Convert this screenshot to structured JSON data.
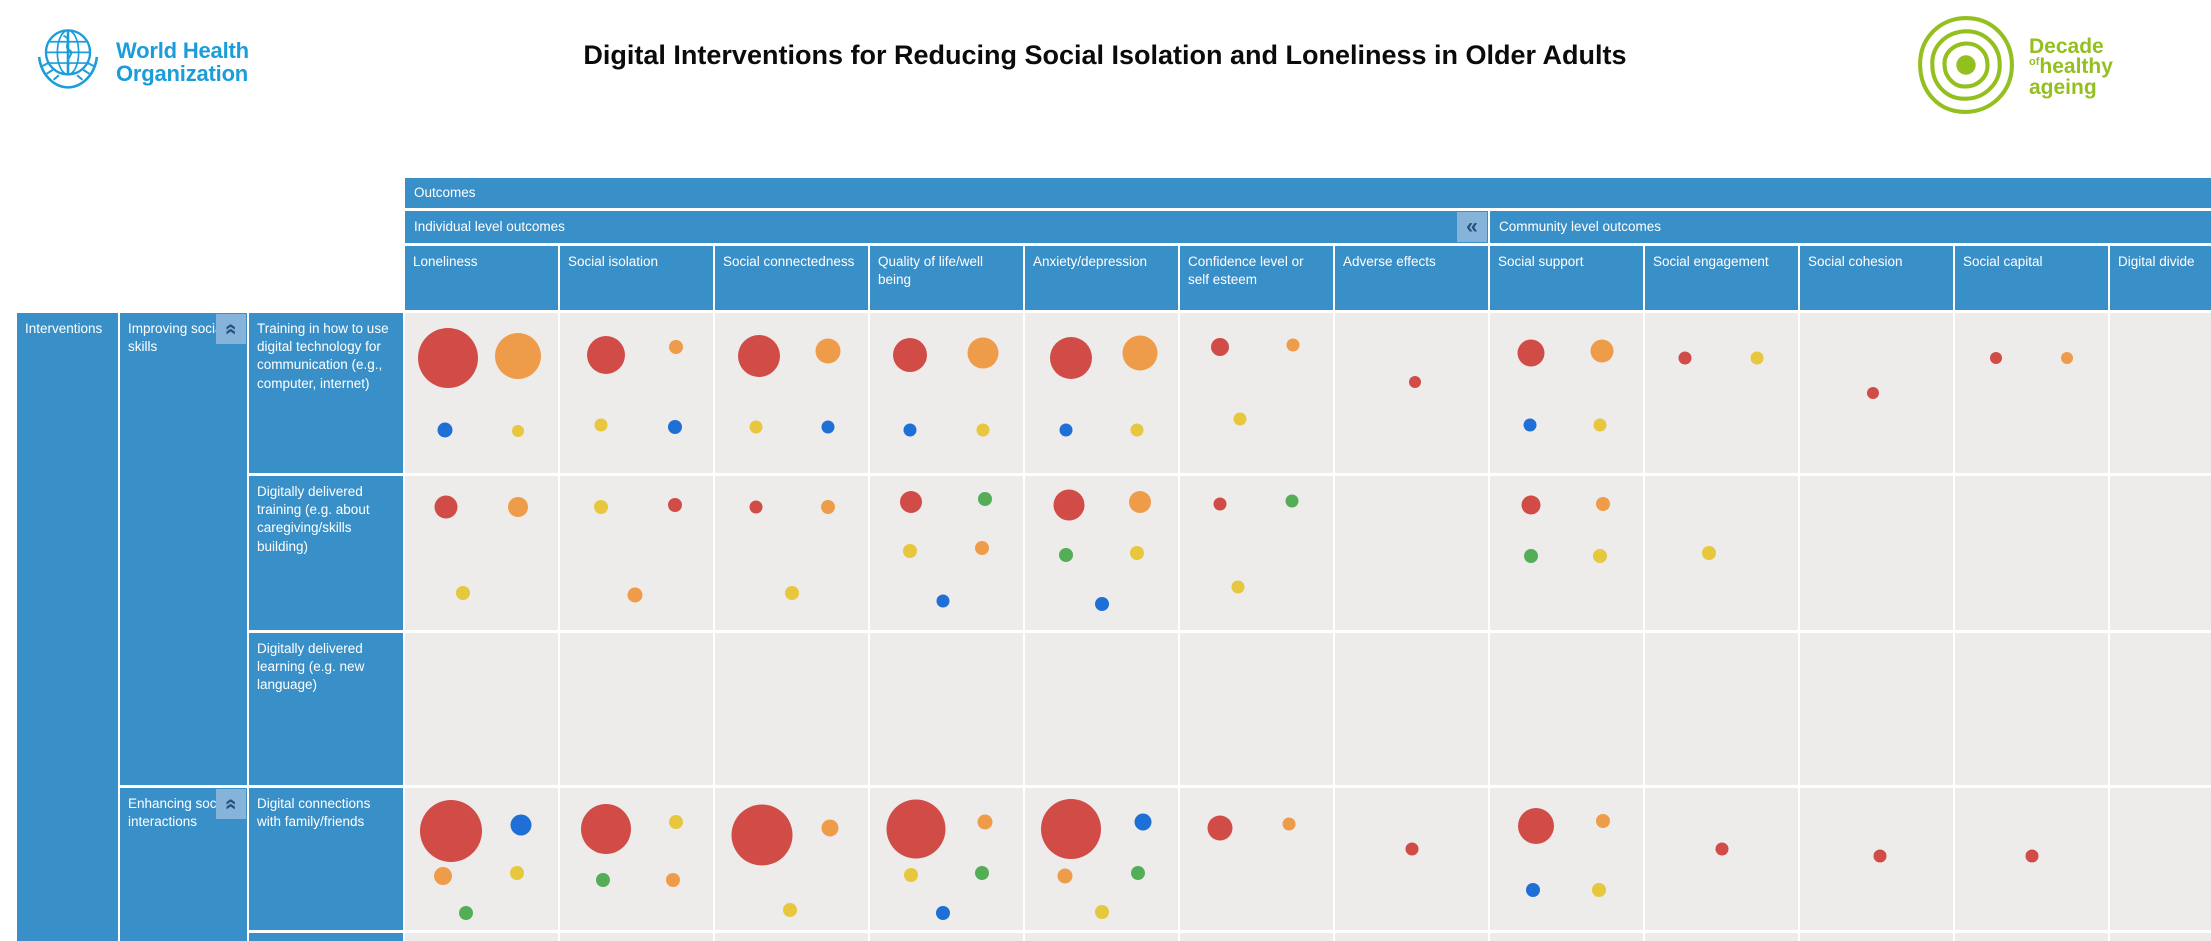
{
  "header": {
    "who_logo": {
      "line1": "World Health",
      "line2": "Organization"
    },
    "title": "Digital Interventions for Reducing Social Isolation and Loneliness in Older Adults",
    "decade_logo": {
      "line1": "Decade",
      "line2_small": "of",
      "line2": "healthy",
      "line3": "ageing"
    }
  },
  "matrix": {
    "outcomes_label": "Outcomes",
    "individual_label": "Individual level outcomes",
    "community_label": "Community level outcomes",
    "collapse_icon": "«",
    "interventions_label": "Interventions",
    "groups": [
      {
        "label": "Improving social skills"
      },
      {
        "label": "Enhancing social interactions"
      }
    ],
    "columns": [
      "Loneliness",
      "Social isolation",
      "Social connectedness",
      "Quality of life/well being",
      "Anxiety/depression",
      "Confidence level or self esteem",
      "Adverse effects",
      "Social support",
      "Social engagement",
      "Social cohesion",
      "Social capital",
      "Digital divide"
    ],
    "rows": [
      {
        "label": "Training in how to use digital technology for communication (e.g., computer, internet)",
        "cells": [
          [
            [
              "r",
              60,
              28,
              28
            ],
            [
              "o",
              46,
              74,
              27
            ],
            [
              "b",
              15,
              26,
              73
            ],
            [
              "y",
              12,
              74,
              74
            ]
          ],
          [
            [
              "r",
              38,
              30,
              26
            ],
            [
              "o",
              14,
              76,
              21
            ],
            [
              "y",
              13,
              27,
              70
            ],
            [
              "b",
              14,
              75,
              71
            ]
          ],
          [
            [
              "r",
              42,
              29,
              27
            ],
            [
              "o",
              25,
              74,
              24
            ],
            [
              "y",
              13,
              27,
              71
            ],
            [
              "b",
              13,
              74,
              71
            ]
          ],
          [
            [
              "r",
              34,
              26,
              26
            ],
            [
              "o",
              31,
              74,
              25
            ],
            [
              "b",
              13,
              26,
              73
            ],
            [
              "y",
              13,
              74,
              73
            ]
          ],
          [
            [
              "r",
              42,
              30,
              28
            ],
            [
              "o",
              35,
              75,
              25
            ],
            [
              "b",
              13,
              27,
              73
            ],
            [
              "y",
              13,
              73,
              73
            ]
          ],
          [
            [
              "r",
              18,
              26,
              21
            ],
            [
              "o",
              13,
              74,
              20
            ],
            [
              "y",
              13,
              39,
              66
            ]
          ],
          [
            [
              "r",
              12,
              52,
              43
            ]
          ],
          [
            [
              "r",
              27,
              27,
              25
            ],
            [
              "o",
              23,
              73,
              24
            ],
            [
              "b",
              13,
              26,
              70
            ],
            [
              "y",
              13,
              72,
              70
            ]
          ],
          [
            [
              "r",
              13,
              26,
              28
            ],
            [
              "y",
              13,
              73,
              28
            ]
          ],
          [
            [
              "r",
              12,
              48,
              50
            ]
          ],
          [
            [
              "r",
              12,
              27,
              28
            ],
            [
              "o",
              12,
              73,
              28
            ]
          ],
          []
        ]
      },
      {
        "label": "Digitally delivered training (e.g. about caregiving/skills building)",
        "cells": [
          [
            [
              "r",
              23,
              27,
              20
            ],
            [
              "o",
              20,
              74,
              20
            ],
            [
              "y",
              14,
              38,
              76
            ]
          ],
          [
            [
              "y",
              14,
              27,
              20
            ],
            [
              "r",
              14,
              75,
              19
            ],
            [
              "o",
              15,
              49,
              77
            ]
          ],
          [
            [
              "r",
              13,
              27,
              20
            ],
            [
              "o",
              14,
              74,
              20
            ],
            [
              "y",
              14,
              50,
              76
            ]
          ],
          [
            [
              "r",
              22,
              27,
              17
            ],
            [
              "g",
              14,
              75,
              15
            ],
            [
              "y",
              14,
              26,
              49
            ],
            [
              "o",
              14,
              73,
              47
            ],
            [
              "b",
              13,
              48,
              81
            ]
          ],
          [
            [
              "r",
              31,
              29,
              19
            ],
            [
              "o",
              22,
              75,
              17
            ],
            [
              "g",
              14,
              27,
              51
            ],
            [
              "y",
              14,
              73,
              50
            ],
            [
              "b",
              14,
              50,
              83
            ]
          ],
          [
            [
              "r",
              13,
              26,
              18
            ],
            [
              "g",
              13,
              73,
              16
            ],
            [
              "y",
              13,
              38,
              72
            ]
          ],
          [],
          [
            [
              "r",
              19,
              27,
              19
            ],
            [
              "o",
              14,
              74,
              18
            ],
            [
              "g",
              14,
              27,
              52
            ],
            [
              "y",
              14,
              72,
              52
            ]
          ],
          [
            [
              "y",
              14,
              42,
              50
            ]
          ],
          [],
          [],
          []
        ]
      },
      {
        "label": "Digitally delivered learning (e.g. new language)",
        "cells": [
          [],
          [],
          [],
          [],
          [],
          [],
          [],
          [],
          [],
          [],
          [],
          []
        ]
      },
      {
        "label": "Digital connections with family/friends",
        "cells": [
          [
            [
              "r",
              62,
              30,
              30
            ],
            [
              "b",
              21,
              76,
              26
            ],
            [
              "o",
              18,
              25,
              62
            ],
            [
              "y",
              14,
              73,
              60
            ],
            [
              "g",
              14,
              40,
              88
            ]
          ],
          [
            [
              "r",
              50,
              30,
              29
            ],
            [
              "y",
              14,
              76,
              24
            ],
            [
              "g",
              14,
              28,
              65
            ],
            [
              "o",
              14,
              74,
              65
            ]
          ],
          [
            [
              "r",
              61,
              31,
              33
            ],
            [
              "o",
              17,
              75,
              28
            ],
            [
              "y",
              14,
              49,
              86
            ]
          ],
          [
            [
              "r",
              59,
              30,
              29
            ],
            [
              "o",
              15,
              75,
              24
            ],
            [
              "y",
              14,
              27,
              61
            ],
            [
              "g",
              14,
              73,
              60
            ],
            [
              "b",
              14,
              48,
              88
            ]
          ],
          [
            [
              "r",
              60,
              30,
              29
            ],
            [
              "b",
              17,
              77,
              24
            ],
            [
              "o",
              15,
              26,
              62
            ],
            [
              "g",
              14,
              74,
              60
            ],
            [
              "y",
              14,
              50,
              87
            ]
          ],
          [
            [
              "r",
              25,
              26,
              28
            ],
            [
              "o",
              13,
              71,
              25
            ]
          ],
          [
            [
              "r",
              13,
              50,
              43
            ]
          ],
          [
            [
              "r",
              36,
              30,
              27
            ],
            [
              "o",
              14,
              74,
              23
            ],
            [
              "b",
              14,
              28,
              72
            ],
            [
              "y",
              14,
              71,
              72
            ]
          ],
          [
            [
              "r",
              13,
              50,
              43
            ]
          ],
          [
            [
              "r",
              13,
              52,
              48
            ]
          ],
          [
            [
              "r",
              13,
              50,
              48
            ]
          ],
          []
        ]
      },
      {
        "label": "",
        "cells": [
          [],
          [],
          [],
          [],
          [],
          [],
          [],
          [],
          [],
          [],
          [],
          []
        ]
      }
    ]
  },
  "colors": {
    "r": "#d14b47",
    "o": "#ee9c49",
    "y": "#e6c73d",
    "g": "#54ae58",
    "b": "#1e70d7",
    "header_blue": "#3990c8",
    "button_blue": "#85b3d9",
    "chevron_blue": "#1f5380",
    "cell_bg": "#edecea",
    "who_blue": "#1b9dd9",
    "decade_green": "#93c01f"
  }
}
